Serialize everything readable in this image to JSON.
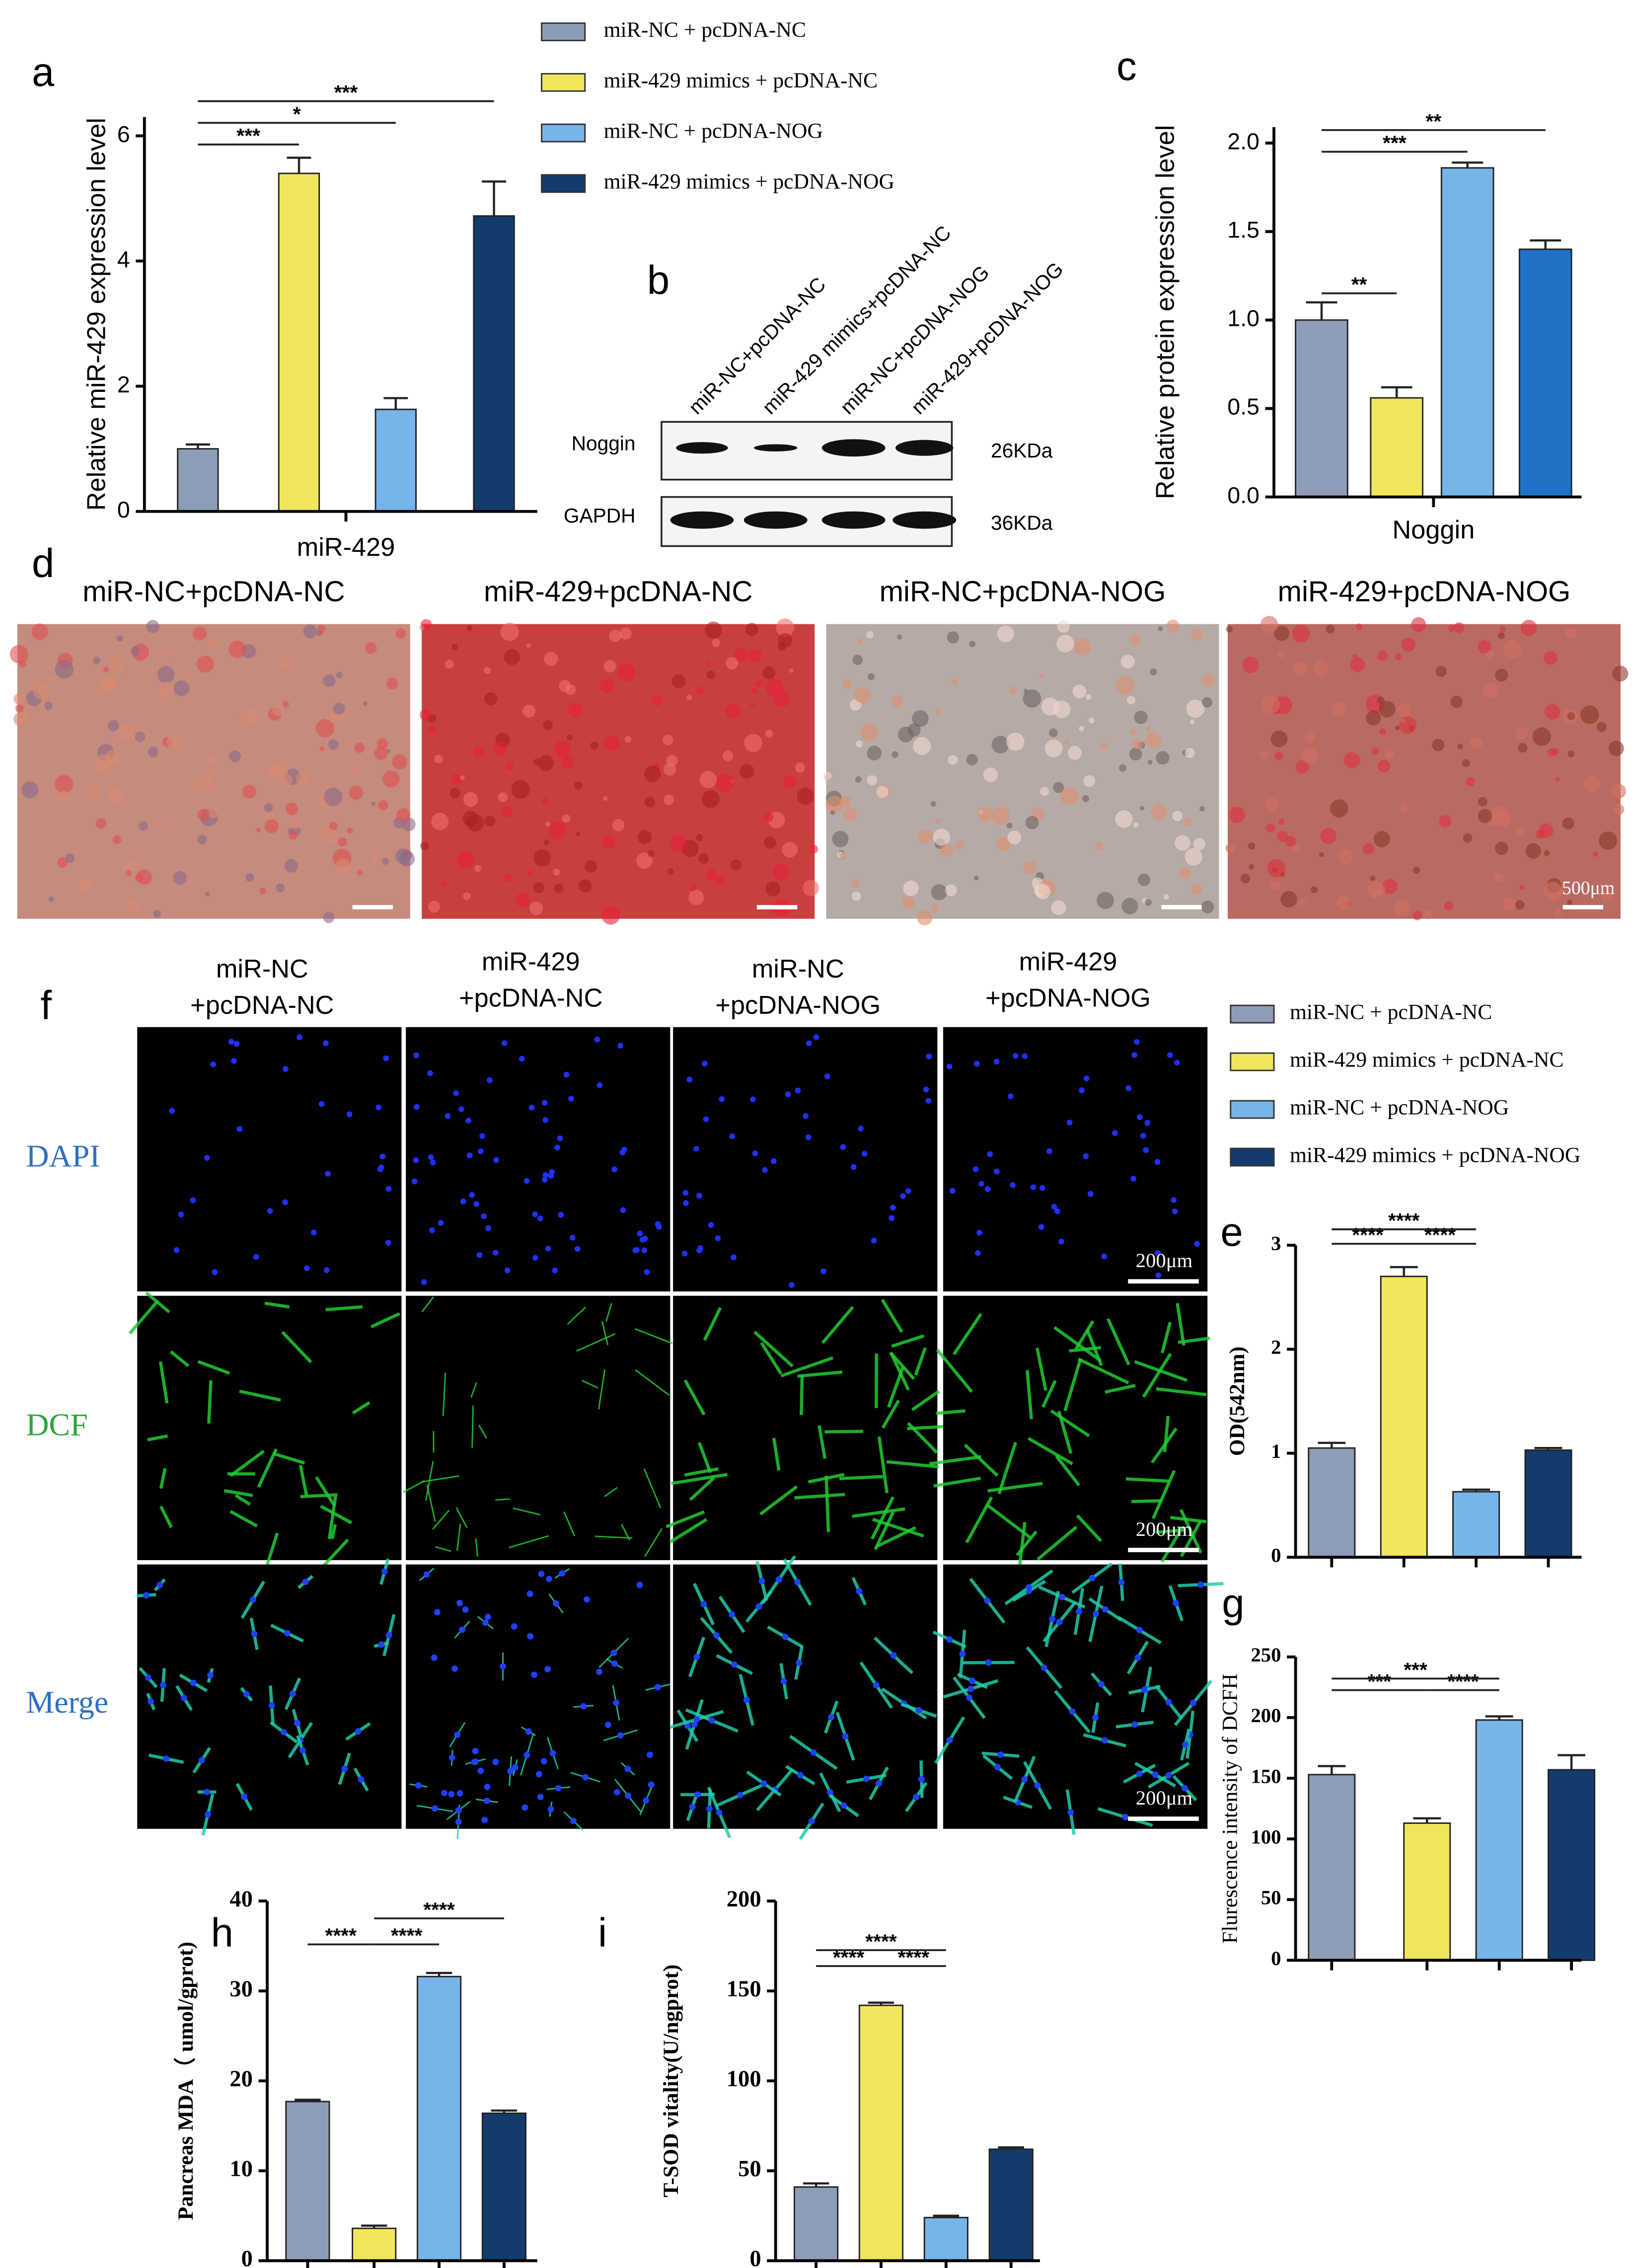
{
  "chart_data": [
    {
      "type": "bar",
      "panel": "a",
      "ylabel": "Relative miR-429 expression level",
      "categories": [
        "miR-429"
      ],
      "series": [
        {
          "name": "miR-NC + pcDNA-NC",
          "color": "#8e9db7",
          "values": [
            1.0
          ],
          "errors": [
            0.07
          ]
        },
        {
          "name": "miR-429 mimics + pcDNA-NC",
          "color": "#f0e65c",
          "values": [
            5.4
          ],
          "errors": [
            0.25
          ]
        },
        {
          "name": "miR-NC + pcDNA-NOG",
          "color": "#76b5ea",
          "values": [
            1.63
          ],
          "errors": [
            0.18
          ]
        },
        {
          "name": "miR-429 mimics + pcDNA-NOG",
          "color": "#133c6c",
          "values": [
            4.72
          ],
          "errors": [
            0.55
          ]
        }
      ],
      "ylim": [
        0,
        6.3
      ],
      "yticks": [
        0,
        2,
        4,
        6
      ],
      "annotations": [
        {
          "label": "***",
          "from": 0,
          "to": 1
        },
        {
          "label": "*",
          "from": 0,
          "to": 2
        },
        {
          "label": "***",
          "from": 0,
          "to": 3
        }
      ]
    },
    {
      "type": "bar",
      "panel": "c",
      "ylabel": "Relative protein expression level",
      "categories": [
        "Noggin"
      ],
      "series": [
        {
          "color": "#8e9db7",
          "values": [
            1.0
          ],
          "errors": [
            0.1
          ]
        },
        {
          "color": "#f0e65c",
          "values": [
            0.56
          ],
          "errors": [
            0.06
          ]
        },
        {
          "color": "#76b5ea",
          "values": [
            1.86
          ],
          "errors": [
            0.03
          ]
        },
        {
          "color": "#2172c7",
          "values": [
            1.4
          ],
          "errors": [
            0.05
          ]
        }
      ],
      "ylim": [
        0,
        2.09
      ],
      "yticks": [
        {
          "value": 0,
          "label": "0.0"
        },
        0.5,
        {
          "value": 1,
          "label": "1.0"
        },
        1.5,
        {
          "value": 2,
          "label": "2.0"
        }
      ],
      "annotations": [
        {
          "label": "**",
          "from": 0,
          "to": 1
        },
        {
          "label": "***",
          "from": 0,
          "to": 2
        },
        {
          "label": "**",
          "from": 0,
          "to": 3
        }
      ]
    },
    {
      "type": "bar",
      "panel": "e",
      "ylabel": "OD(542nm)",
      "categories": [
        null,
        null,
        null,
        null
      ],
      "values": [
        1.05,
        2.7,
        0.63,
        1.03
      ],
      "errors": [
        0.05,
        0.09,
        0.02,
        0.02
      ],
      "colors": [
        "#8e9db7",
        "#f0e65c",
        "#76b5ea",
        "#133c6c"
      ],
      "ylim": [
        0,
        3
      ],
      "yticks": [
        0,
        1,
        2,
        3
      ],
      "annotations": [
        {
          "label": "****",
          "from": 0,
          "to": 1
        },
        {
          "label": "****",
          "from": 1,
          "to": 2
        },
        {
          "label": "****",
          "from": 0,
          "to": 2
        }
      ]
    },
    {
      "type": "bar",
      "panel": "g",
      "ylabel": "Flurescence intensity of DCFH",
      "categories": [
        null,
        null,
        null,
        null
      ],
      "values": [
        153,
        113,
        198,
        157
      ],
      "errors": [
        7,
        4,
        3,
        12
      ],
      "colors": [
        "#8e9db7",
        "#f0e65c",
        "#76b5ea",
        "#133c6c"
      ],
      "ylim": [
        0,
        250
      ],
      "yticks": [
        0,
        50,
        100,
        150,
        200,
        250
      ],
      "annotations": [
        {
          "label": "***",
          "from": 0,
          "to": 1
        },
        {
          "label": "****",
          "from": 1,
          "to": 2
        },
        {
          "label": "***",
          "from": 0,
          "to": 2
        }
      ]
    },
    {
      "type": "bar",
      "panel": "h",
      "ylabel": "Pancreas MDA（ umol/gprot)",
      "categories": [
        null,
        null,
        null,
        null
      ],
      "values": [
        17.7,
        3.6,
        31.6,
        16.4
      ],
      "errors": [
        0.2,
        0.3,
        0.4,
        0.3
      ],
      "colors": [
        "#8e9db7",
        "#f0e65c",
        "#76b5ea",
        "#133c6c"
      ],
      "ylim": [
        0,
        40
      ],
      "yticks": [
        0,
        10,
        20,
        30,
        40
      ],
      "annotations": [
        {
          "label": "****",
          "from": 0,
          "to": 1
        },
        {
          "label": "****",
          "from": 1,
          "to": 2
        },
        {
          "label": "****",
          "from": 1,
          "to": 3
        }
      ]
    },
    {
      "type": "bar",
      "panel": "i",
      "ylabel": "T-SOD vitality(U/ngprot)",
      "categories": [
        null,
        null,
        null,
        null
      ],
      "values": [
        41,
        142,
        24,
        62
      ],
      "errors": [
        2,
        1.5,
        1,
        1
      ],
      "colors": [
        "#8e9db7",
        "#f0e65c",
        "#76b5ea",
        "#133c6c"
      ],
      "ylim": [
        0,
        200
      ],
      "yticks": [
        0,
        50,
        100,
        150,
        200
      ],
      "annotations": [
        {
          "label": "****",
          "from": 0,
          "to": 1
        },
        {
          "label": "****",
          "from": 1,
          "to": 2
        },
        {
          "label": "****",
          "from": 0,
          "to": 2
        }
      ]
    }
  ],
  "legend": {
    "items": [
      {
        "name": "miR-NC + pcDNA-NC",
        "color": "#8e9db7"
      },
      {
        "name": "miR-429 mimics + pcDNA-NC",
        "color": "#f0e65c"
      },
      {
        "name": "miR-NC + pcDNA-NOG",
        "color": "#76b5ea"
      },
      {
        "name": "miR-429 mimics + pcDNA-NOG",
        "color": "#133c6c"
      }
    ]
  },
  "blot": {
    "panel": "b",
    "lanes": [
      "miR-NC+pcDNA-NC",
      "miR-429 mimics+pcDNA-NC",
      "miR-NC+pcDNA-NOG",
      "miR-429+pcDNA-NOG"
    ],
    "rows": [
      {
        "name": "Noggin",
        "size": "26KDa"
      },
      {
        "name": "GAPDH",
        "size": "36KDa"
      }
    ]
  },
  "micrographs": {
    "panel": "d",
    "titles": [
      "miR-NC+pcDNA-NC",
      "miR-429+pcDNA-NC",
      "miR-NC+pcDNA-NOG",
      "miR-429+pcDNA-NOG"
    ],
    "scale_bar": "500μm"
  },
  "fluorescence": {
    "panel": "f",
    "columns": [
      [
        "miR-NC",
        "+pcDNA-NC"
      ],
      [
        "miR-429",
        "+pcDNA-NC"
      ],
      [
        "miR-NC",
        "+pcDNA-NOG"
      ],
      [
        "miR-429",
        "+pcDNA-NOG"
      ]
    ],
    "rows": [
      "DAPI",
      "DCF",
      "Merge"
    ],
    "scale_bar": "200μm"
  }
}
